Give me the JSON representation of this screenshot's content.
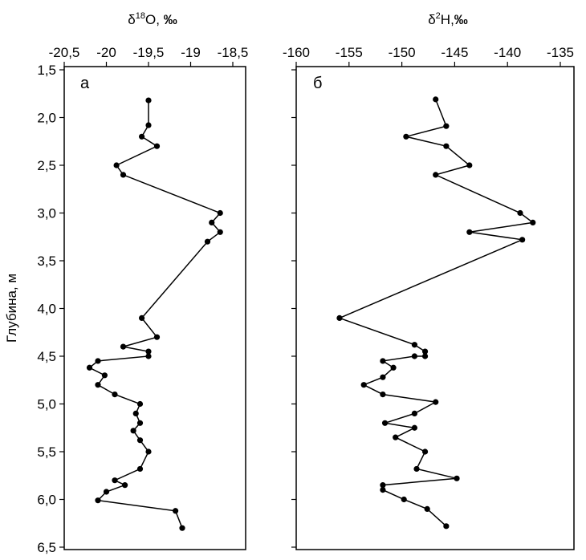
{
  "chart_data": [
    {
      "type": "line",
      "panel_label": "а",
      "title_symbol": "δ",
      "title_sup": "18",
      "title_rest": "O, ",
      "title_unit": "‰",
      "ylabel": "Глубина, м",
      "xlim": [
        -20.5,
        -18.5
      ],
      "ylim": [
        1.5,
        6.5
      ],
      "x_ticks": [
        -20.5,
        -20,
        -19.5,
        -19,
        -18.5
      ],
      "x_tick_labels": [
        "-20,5",
        "-20",
        "-19,5",
        "-19",
        "-18,5"
      ],
      "y_ticks": [
        1.5,
        2.0,
        2.5,
        3.0,
        3.5,
        4.0,
        4.5,
        5.0,
        5.5,
        6.0,
        6.5
      ],
      "y_tick_labels": [
        "1,5",
        "2,0",
        "2,5",
        "3,0",
        "3,5",
        "4,0",
        "4,5",
        "5,0",
        "5,5",
        "6,0",
        "6,5"
      ],
      "series": [
        {
          "x": [
            -19.5,
            -19.5,
            -19.58,
            -19.4,
            -19.88,
            -19.8,
            -18.65,
            -18.75,
            -18.65,
            -18.8,
            -19.58,
            -19.4,
            -19.8,
            -19.5,
            -19.5,
            -20.1,
            -20.2,
            -20.02,
            -20.1,
            -19.9,
            -19.6,
            -19.65,
            -19.6,
            -19.68,
            -19.6,
            -19.5,
            -19.6,
            -19.9,
            -19.78,
            -20.0,
            -20.1,
            -19.18,
            -19.1
          ],
          "y": [
            1.82,
            2.08,
            2.2,
            2.3,
            2.5,
            2.6,
            3.0,
            3.1,
            3.2,
            3.3,
            4.1,
            4.3,
            4.4,
            4.45,
            4.5,
            4.55,
            4.62,
            4.7,
            4.8,
            4.9,
            5.0,
            5.1,
            5.2,
            5.28,
            5.38,
            5.5,
            5.68,
            5.8,
            5.85,
            5.92,
            6.01,
            6.12,
            6.3
          ]
        }
      ]
    },
    {
      "type": "line",
      "panel_label": "б",
      "title_symbol": "δ",
      "title_sup": "2",
      "title_rest": "H,",
      "title_unit": "‰",
      "xlim": [
        -160,
        -135
      ],
      "ylim": [
        1.5,
        6.5
      ],
      "x_ticks": [
        -160,
        -155,
        -150,
        -145,
        -140,
        -135
      ],
      "x_tick_labels": [
        "-160",
        "-155",
        "-150",
        "-145",
        "-140",
        "-135"
      ],
      "y_ticks": [
        1.5,
        2.0,
        2.5,
        3.0,
        3.5,
        4.0,
        4.5,
        5.0,
        5.5,
        6.0,
        6.5
      ],
      "series": [
        {
          "x": [
            -146.8,
            -145.8,
            -149.6,
            -145.8,
            -143.6,
            -146.8,
            -138.8,
            -137.6,
            -143.6,
            -138.6,
            -155.9,
            -148.8,
            -147.8,
            -147.8,
            -148.8,
            -151.8,
            -150.8,
            -151.8,
            -153.6,
            -151.8,
            -146.8,
            -148.8,
            -151.6,
            -148.8,
            -150.6,
            -147.8,
            -148.6,
            -144.8,
            -151.8,
            -151.8,
            -149.8,
            -147.6,
            -145.8
          ],
          "y": [
            1.81,
            2.09,
            2.2,
            2.3,
            2.5,
            2.6,
            3.0,
            3.1,
            3.2,
            3.28,
            4.1,
            4.38,
            4.45,
            4.5,
            4.5,
            4.55,
            4.62,
            4.72,
            4.8,
            4.9,
            4.98,
            5.1,
            5.2,
            5.25,
            5.35,
            5.5,
            5.68,
            5.78,
            5.85,
            5.9,
            6.0,
            6.1,
            6.28
          ]
        }
      ]
    }
  ]
}
